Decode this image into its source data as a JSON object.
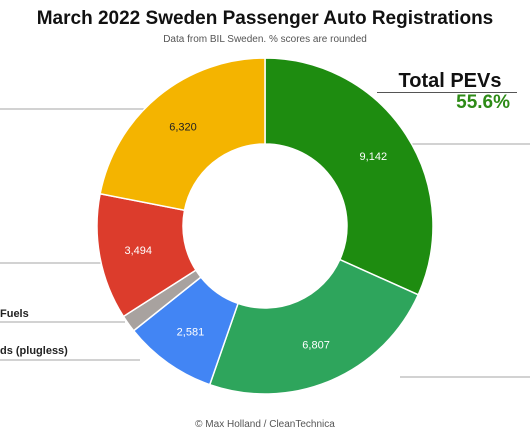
{
  "title": "March 2022 Sweden Passenger Auto Registrations",
  "subtitle": "Data from BIL Sweden. % scores are rounded",
  "total": {
    "label": "Total PEVs",
    "value": "55.6%"
  },
  "footer": "© Max Holland / CleanTechnica",
  "side_labels": [
    {
      "text": "Fuels"
    },
    {
      "text": "ds (plugless)"
    }
  ],
  "chart_data": {
    "type": "pie",
    "donut": true,
    "slices": [
      {
        "value": 9142,
        "label": "9,142",
        "color": "#1e8c10"
      },
      {
        "value": 6807,
        "label": "6,807",
        "color": "#2ea55c"
      },
      {
        "value": 2581,
        "label": "2,581",
        "color": "#4285f4"
      },
      {
        "value": 480,
        "label": "",
        "color": "#a8a29f"
      },
      {
        "value": 3494,
        "label": "3,494",
        "color": "#dc3c2c"
      },
      {
        "value": 6320,
        "label": "6,320",
        "color": "#f4b400"
      }
    ]
  }
}
